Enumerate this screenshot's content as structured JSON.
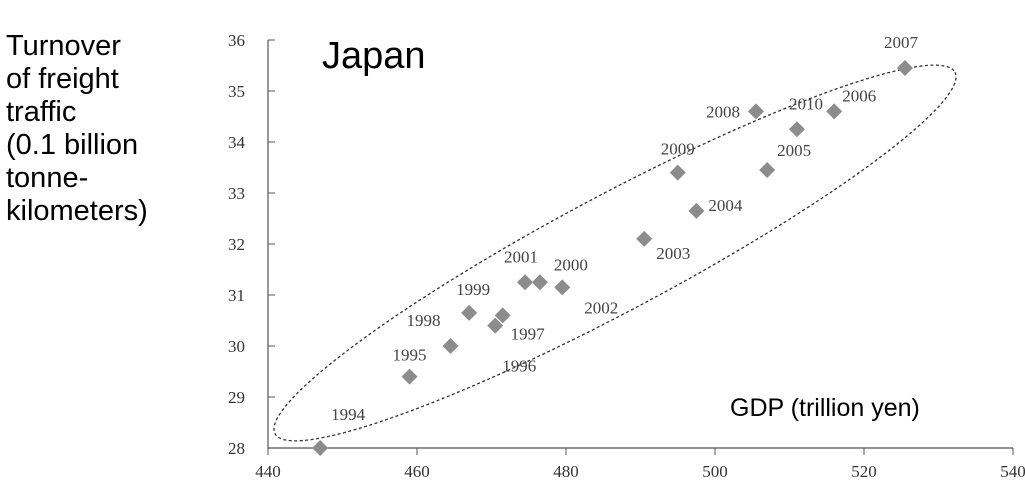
{
  "chart_data": {
    "type": "scatter",
    "title": "Japan",
    "xlabel": "GDP (trillion yen)",
    "ylabel_lines": [
      "Turnover",
      "of freight",
      "traffic",
      "(0.1 billion",
      "tonne-",
      "kilometers)"
    ],
    "xlim": [
      440,
      540
    ],
    "ylim": [
      28,
      36
    ],
    "xticks": [
      "440",
      "460",
      "480",
      "500",
      "520",
      "540"
    ],
    "yticks": [
      "28",
      "29",
      "30",
      "31",
      "32",
      "33",
      "34",
      "35",
      "36"
    ],
    "grid": false,
    "marker_color": "#8c8c8c",
    "points": [
      {
        "label": "1994",
        "x": 447,
        "y": 28.0
      },
      {
        "label": "1995",
        "x": 459,
        "y": 29.4
      },
      {
        "label": "1996",
        "x": 470.5,
        "y": 30.4
      },
      {
        "label": "1997",
        "x": 471.5,
        "y": 30.6
      },
      {
        "label": "1998",
        "x": 464.5,
        "y": 30.0
      },
      {
        "label": "1999",
        "x": 467,
        "y": 30.65
      },
      {
        "label": "2000",
        "x": 476.5,
        "y": 31.25
      },
      {
        "label": "2001",
        "x": 474.5,
        "y": 31.25
      },
      {
        "label": "2002",
        "x": 479.5,
        "y": 31.15
      },
      {
        "label": "2003",
        "x": 490.5,
        "y": 32.1
      },
      {
        "label": "2004",
        "x": 497.5,
        "y": 32.65
      },
      {
        "label": "2005",
        "x": 507,
        "y": 33.45
      },
      {
        "label": "2006",
        "x": 516,
        "y": 34.6
      },
      {
        "label": "2007",
        "x": 525.5,
        "y": 35.45
      },
      {
        "label": "2008",
        "x": 505.5,
        "y": 34.6
      },
      {
        "label": "2009",
        "x": 495,
        "y": 33.4
      },
      {
        "label": "2010",
        "x": 511,
        "y": 34.25
      }
    ]
  }
}
